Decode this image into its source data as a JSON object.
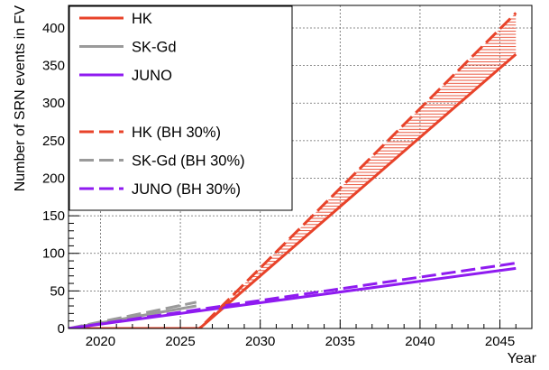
{
  "chart_data": {
    "type": "line",
    "title": "",
    "xlabel": "Year",
    "ylabel": "Number of SRN events in FV",
    "xlim": [
      2018,
      2047
    ],
    "ylim": [
      0,
      430
    ],
    "xticks": [
      2020,
      2025,
      2030,
      2035,
      2040,
      2045
    ],
    "xtick_labels": [
      "2020",
      "2025",
      "2030",
      "2035",
      "2040",
      "2045"
    ],
    "yticks": [
      0,
      50,
      100,
      150,
      200,
      250,
      300,
      350,
      400
    ],
    "ytick_labels": [
      "0",
      "50",
      "100",
      "150",
      "200",
      "250",
      "300",
      "350",
      "400"
    ],
    "grid": true,
    "legend_position": "top-left",
    "series": [
      {
        "name": "HK",
        "color": "#e8432a",
        "dash": "solid",
        "x": [
          2018,
          2026.2,
          2046
        ],
        "y": [
          0,
          0,
          365
        ]
      },
      {
        "name": "SK-Gd",
        "color": "#9a9a9a",
        "dash": "solid",
        "x": [
          2018,
          2026
        ],
        "y": [
          0,
          30
        ]
      },
      {
        "name": "JUNO",
        "color": "#8f1bf0",
        "dash": "solid",
        "x": [
          2018,
          2046
        ],
        "y": [
          0,
          80
        ]
      },
      {
        "name": "HK (BH 30%)",
        "color": "#e8432a",
        "dash": "dashed",
        "x": [
          2018,
          2026.2,
          2046
        ],
        "y": [
          0,
          0,
          420
        ]
      },
      {
        "name": "SK-Gd (BH 30%)",
        "color": "#9a9a9a",
        "dash": "dashed",
        "x": [
          2018,
          2026
        ],
        "y": [
          0,
          35
        ]
      },
      {
        "name": "JUNO (BH 30%)",
        "color": "#8f1bf0",
        "dash": "dashed",
        "x": [
          2018,
          2046
        ],
        "y": [
          0,
          87
        ]
      }
    ],
    "bands": [
      {
        "between": [
          "HK",
          "HK (BH 30%)"
        ],
        "color": "#e8432a",
        "pattern": "horizontal-hatch"
      }
    ],
    "legend_entries": [
      "HK",
      "SK-Gd",
      "JUNO",
      "",
      "HK (BH 30%)",
      "SK-Gd (BH 30%)",
      "JUNO (BH 30%)"
    ]
  }
}
